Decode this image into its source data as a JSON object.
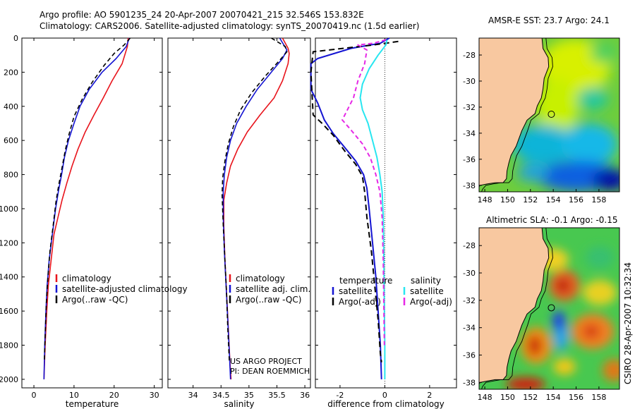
{
  "header": {
    "line1": "Argo profile: AO 5901235_24 20-Apr-2007 20070421_215 32.546S 153.832E",
    "line2": "Climatology: CARS2006. Satellite-adjusted climatology: synTS_20070419.nc (1.5d earlier)"
  },
  "side_label": "CSIRO 28-Apr-2007 10:32:34",
  "credits": {
    "line1": "US ARGO PROJECT",
    "line2": "PI: DEAN ROEMMICH"
  },
  "colors": {
    "red": "#e8141c",
    "blue": "#1414d2",
    "black": "#000000",
    "cyan": "#28e6f0",
    "magenta": "#e628e6",
    "land": "#f8c8a0"
  },
  "chart_data": [
    {
      "type": "line",
      "name": "temperature-profile",
      "xlabel": "temperature",
      "ylabel": "",
      "xlim": [
        -3,
        32
      ],
      "ylim": [
        2050,
        0
      ],
      "xticks": [
        "0",
        "10",
        "20",
        "30"
      ],
      "yticks": [
        "0",
        "200",
        "400",
        "600",
        "800",
        "1000",
        "1200",
        "1400",
        "1600",
        "1800",
        "2000"
      ],
      "legend": [
        "climatology",
        "satellite-adjusted climatology",
        "Argo(..raw -QC)"
      ],
      "series": [
        {
          "name": "climatology",
          "color": "red",
          "dash": "",
          "points": [
            [
              23.5,
              0
            ],
            [
              23.3,
              50
            ],
            [
              22.0,
              150
            ],
            [
              19.5,
              250
            ],
            [
              17.3,
              350
            ],
            [
              15.0,
              450
            ],
            [
              12.8,
              550
            ],
            [
              11.0,
              650
            ],
            [
              9.5,
              750
            ],
            [
              8.2,
              850
            ],
            [
              7.0,
              950
            ],
            [
              6.0,
              1050
            ],
            [
              5.0,
              1150
            ],
            [
              4.3,
              1300
            ],
            [
              3.6,
              1450
            ],
            [
              3.2,
              1600
            ],
            [
              2.8,
              1800
            ],
            [
              2.5,
              2000
            ]
          ]
        },
        {
          "name": "satellite-adjusted climatology",
          "color": "blue",
          "dash": "",
          "points": [
            [
              23.8,
              0
            ],
            [
              23.0,
              50
            ],
            [
              20.5,
              120
            ],
            [
              17.0,
              200
            ],
            [
              13.8,
              300
            ],
            [
              11.5,
              400
            ],
            [
              10.0,
              500
            ],
            [
              8.6,
              600
            ],
            [
              7.6,
              700
            ],
            [
              6.9,
              800
            ],
            [
              6.1,
              900
            ],
            [
              5.4,
              1000
            ],
            [
              4.6,
              1150
            ],
            [
              3.8,
              1300
            ],
            [
              3.3,
              1450
            ],
            [
              3.0,
              1600
            ],
            [
              2.7,
              1800
            ],
            [
              2.5,
              2000
            ]
          ]
        },
        {
          "name": "Argo(..raw -QC)",
          "color": "black",
          "dash": "6,4",
          "points": [
            [
              24.0,
              0
            ],
            [
              22.5,
              40
            ],
            [
              20.0,
              90
            ],
            [
              17.5,
              160
            ],
            [
              14.5,
              260
            ],
            [
              12.0,
              360
            ],
            [
              10.0,
              460
            ],
            [
              8.8,
              560
            ],
            [
              7.8,
              660
            ],
            [
              7.0,
              760
            ],
            [
              6.2,
              860
            ],
            [
              5.5,
              960
            ],
            [
              4.8,
              1100
            ],
            [
              4.0,
              1250
            ],
            [
              3.5,
              1400
            ],
            [
              3.1,
              1550
            ],
            [
              2.8,
              1750
            ],
            [
              2.6,
              1900
            ]
          ]
        }
      ]
    },
    {
      "type": "line",
      "name": "salinity-profile",
      "xlabel": "salinity",
      "ylabel": "",
      "xlim": [
        33.55,
        36.1
      ],
      "ylim": [
        2050,
        0
      ],
      "xticks": [
        "34",
        "34.5",
        "35",
        "35.5",
        "36"
      ],
      "legend": [
        "climatology",
        "satellite adj. clim.",
        "Argo(..raw -QC)"
      ],
      "series": [
        {
          "name": "climatology",
          "color": "red",
          "dash": "",
          "points": [
            [
              35.6,
              0
            ],
            [
              35.7,
              60
            ],
            [
              35.72,
              90
            ],
            [
              35.7,
              150
            ],
            [
              35.6,
              250
            ],
            [
              35.45,
              350
            ],
            [
              35.2,
              450
            ],
            [
              34.97,
              550
            ],
            [
              34.8,
              650
            ],
            [
              34.67,
              750
            ],
            [
              34.6,
              850
            ],
            [
              34.55,
              950
            ],
            [
              34.55,
              1100
            ],
            [
              34.57,
              1300
            ],
            [
              34.6,
              1500
            ],
            [
              34.63,
              1700
            ],
            [
              34.66,
              1900
            ],
            [
              34.68,
              2000
            ]
          ]
        },
        {
          "name": "satellite adj. clim.",
          "color": "blue",
          "dash": "",
          "points": [
            [
              35.55,
              0
            ],
            [
              35.68,
              70
            ],
            [
              35.6,
              120
            ],
            [
              35.4,
              200
            ],
            [
              35.15,
              300
            ],
            [
              34.95,
              400
            ],
            [
              34.78,
              500
            ],
            [
              34.67,
              600
            ],
            [
              34.6,
              700
            ],
            [
              34.56,
              800
            ],
            [
              34.54,
              900
            ],
            [
              34.54,
              1050
            ],
            [
              34.56,
              1250
            ],
            [
              34.59,
              1450
            ],
            [
              34.62,
              1650
            ],
            [
              34.65,
              1850
            ],
            [
              34.67,
              2000
            ]
          ]
        },
        {
          "name": "Argo(..raw -QC)",
          "color": "black",
          "dash": "6,4",
          "points": [
            [
              35.4,
              0
            ],
            [
              35.5,
              20
            ],
            [
              35.65,
              50
            ],
            [
              35.68,
              80
            ],
            [
              35.55,
              130
            ],
            [
              35.3,
              220
            ],
            [
              35.05,
              320
            ],
            [
              34.85,
              420
            ],
            [
              34.72,
              520
            ],
            [
              34.63,
              620
            ],
            [
              34.57,
              720
            ],
            [
              34.53,
              820
            ],
            [
              34.52,
              920
            ],
            [
              34.54,
              1100
            ],
            [
              34.57,
              1300
            ],
            [
              34.6,
              1500
            ],
            [
              34.62,
              1700
            ],
            [
              34.65,
              1900
            ]
          ]
        }
      ]
    },
    {
      "type": "line",
      "name": "difference-profile",
      "xlabel": "difference from climatology",
      "ylabel": "",
      "xlim": [
        -3.1,
        3.2
      ],
      "ylim": [
        2050,
        0
      ],
      "xticks": [
        "-2",
        "0",
        "2"
      ],
      "legend_columns": [
        "temperature",
        "salinity"
      ],
      "legend": [
        "satellite",
        "Argo(-adj)",
        "satellite",
        "Argo(-adj)"
      ],
      "series": [
        {
          "name": "temperature satellite",
          "color": "blue",
          "dash": "",
          "points": [
            [
              0.2,
              0
            ],
            [
              -0.2,
              30
            ],
            [
              -1.5,
              60
            ],
            [
              -3.0,
              120
            ],
            [
              -3.3,
              150
            ],
            [
              -3.3,
              300
            ],
            [
              -3.0,
              380
            ],
            [
              -2.7,
              480
            ],
            [
              -2.3,
              560
            ],
            [
              -1.8,
              640
            ],
            [
              -1.3,
              720
            ],
            [
              -0.95,
              800
            ],
            [
              -0.8,
              880
            ],
            [
              -0.7,
              1000
            ],
            [
              -0.55,
              1200
            ],
            [
              -0.4,
              1400
            ],
            [
              -0.3,
              1600
            ],
            [
              -0.2,
              1800
            ],
            [
              -0.15,
              2000
            ]
          ]
        },
        {
          "name": "temperature Argo(-adj)",
          "color": "black",
          "dash": "8,5",
          "points": [
            [
              0.6,
              20
            ],
            [
              -0.5,
              40
            ],
            [
              -2.5,
              70
            ],
            [
              -3.2,
              80
            ],
            [
              -3.3,
              200
            ],
            [
              -3.2,
              450
            ],
            [
              -2.8,
              500
            ],
            [
              -2.3,
              570
            ],
            [
              -1.8,
              660
            ],
            [
              -1.3,
              740
            ],
            [
              -1.0,
              810
            ],
            [
              -0.9,
              900
            ],
            [
              -0.8,
              1050
            ],
            [
              -0.6,
              1250
            ],
            [
              -0.45,
              1450
            ],
            [
              -0.3,
              1650
            ],
            [
              -0.2,
              1850
            ],
            [
              -0.15,
              1900
            ]
          ]
        },
        {
          "name": "salinity satellite",
          "color": "cyan",
          "dash": "",
          "points": [
            [
              0.1,
              10
            ],
            [
              0.05,
              40
            ],
            [
              -0.3,
              100
            ],
            [
              -0.7,
              180
            ],
            [
              -1.0,
              270
            ],
            [
              -1.1,
              350
            ],
            [
              -1.0,
              420
            ],
            [
              -0.75,
              500
            ],
            [
              -0.55,
              600
            ],
            [
              -0.35,
              700
            ],
            [
              -0.22,
              800
            ],
            [
              -0.12,
              900
            ],
            [
              -0.07,
              1050
            ],
            [
              -0.04,
              1300
            ],
            [
              -0.02,
              1600
            ],
            [
              0.0,
              1800
            ],
            [
              0.0,
              2000
            ]
          ]
        },
        {
          "name": "salinity Argo(-adj)",
          "color": "magenta",
          "dash": "6,4",
          "points": [
            [
              0.05,
              10
            ],
            [
              -0.5,
              30
            ],
            [
              -1.2,
              40
            ],
            [
              -0.8,
              70
            ],
            [
              -0.9,
              150
            ],
            [
              -1.2,
              250
            ],
            [
              -1.4,
              350
            ],
            [
              -1.9,
              480
            ],
            [
              -1.5,
              540
            ],
            [
              -1.0,
              620
            ],
            [
              -0.65,
              700
            ],
            [
              -0.4,
              800
            ],
            [
              -0.22,
              900
            ],
            [
              -0.12,
              1050
            ],
            [
              -0.07,
              1300
            ],
            [
              -0.04,
              1600
            ],
            [
              -0.02,
              1800
            ]
          ]
        }
      ]
    },
    {
      "type": "heatmap",
      "name": "sst-map",
      "title": "AMSR-E SST: 23.7 Argo: 24.1",
      "xlim": [
        147.5,
        159.8
      ],
      "ylim": [
        -38.5,
        -26.7
      ],
      "xticks": [
        "148",
        "150",
        "152",
        "154",
        "156",
        "158"
      ],
      "yticks": [
        "-28",
        "-30",
        "-32",
        "-34",
        "-36",
        "-38"
      ],
      "argo_position": {
        "lon": 153.832,
        "lat": -32.546
      }
    },
    {
      "type": "heatmap",
      "name": "sla-map",
      "title": "Altimetric SLA: -0.1 Argo: -0.15",
      "xlim": [
        147.5,
        159.8
      ],
      "ylim": [
        -38.5,
        -26.7
      ],
      "xticks": [
        "148",
        "150",
        "152",
        "154",
        "156",
        "158"
      ],
      "yticks": [
        "-28",
        "-30",
        "-32",
        "-34",
        "-36",
        "-38"
      ],
      "argo_position": {
        "lon": 153.832,
        "lat": -32.546
      }
    }
  ]
}
